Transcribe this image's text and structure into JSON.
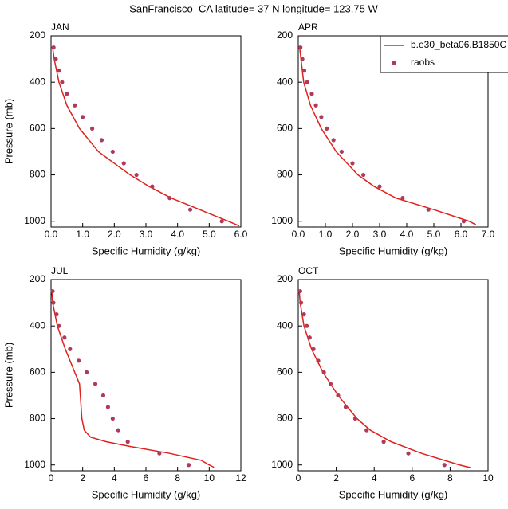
{
  "title": "SanFrancisco_CA  latitude= 37 N longitude= 123.75 W",
  "chart_data": [
    {
      "type": "line",
      "title": "JAN",
      "xlabel": "Specific Humidity (g/kg)",
      "ylabel": "Pressure (mb)",
      "xlim": [
        0,
        6
      ],
      "xticks": [
        {
          "value": 0,
          "label": "0.0"
        },
        {
          "value": 1,
          "label": "1.0"
        },
        {
          "value": 2,
          "label": "2.0"
        },
        {
          "value": 3,
          "label": "3.0"
        },
        {
          "value": 4,
          "label": "4.0"
        },
        {
          "value": 5,
          "label": "5.0"
        },
        {
          "value": 6,
          "label": "6.0"
        }
      ],
      "ylim": [
        1025,
        200
      ],
      "yticks": [
        200,
        400,
        600,
        800,
        1000
      ],
      "series": [
        {
          "style": "line",
          "color": "#e0201b",
          "x": [
            0.05,
            0.1,
            0.25,
            0.5,
            0.9,
            1.5,
            2.5,
            3.1,
            3.8,
            4.7,
            5.6,
            5.95
          ],
          "y": [
            250,
            300,
            400,
            500,
            600,
            700,
            800,
            850,
            900,
            950,
            1000,
            1020
          ]
        },
        {
          "style": "markers",
          "color": "#b03a5a",
          "x": [
            0.08,
            0.15,
            0.25,
            0.35,
            0.5,
            0.75,
            1.0,
            1.3,
            1.6,
            1.95,
            2.3,
            2.7,
            3.2,
            3.75,
            4.4,
            5.4
          ],
          "y": [
            250,
            300,
            350,
            400,
            450,
            500,
            550,
            600,
            650,
            700,
            750,
            800,
            850,
            900,
            950,
            1000
          ]
        }
      ]
    },
    {
      "type": "line",
      "title": "APR",
      "xlabel": "Specific Humidity (g/kg)",
      "xlim": [
        0,
        7
      ],
      "xticks": [
        {
          "value": 0,
          "label": "0.0"
        },
        {
          "value": 1,
          "label": "1.0"
        },
        {
          "value": 2,
          "label": "2.0"
        },
        {
          "value": 3,
          "label": "3.0"
        },
        {
          "value": 4,
          "label": "4.0"
        },
        {
          "value": 5,
          "label": "5.0"
        },
        {
          "value": 6,
          "label": "6.0"
        },
        {
          "value": 7,
          "label": "7.0"
        }
      ],
      "ylim": [
        1025,
        200
      ],
      "yticks": [
        200,
        400,
        600,
        800,
        1000
      ],
      "legend": "upper right",
      "series": [
        {
          "name": "b.e30_beta06.B1850C",
          "style": "line",
          "color": "#e0201b",
          "x": [
            0.05,
            0.1,
            0.2,
            0.45,
            0.85,
            1.4,
            2.2,
            2.8,
            3.6,
            5.0,
            6.3,
            6.55
          ],
          "y": [
            250,
            300,
            400,
            500,
            600,
            700,
            800,
            850,
            900,
            950,
            1000,
            1015
          ]
        },
        {
          "name": "raobs",
          "style": "markers",
          "color": "#b03a5a",
          "x": [
            0.08,
            0.15,
            0.22,
            0.33,
            0.5,
            0.65,
            0.85,
            1.05,
            1.3,
            1.6,
            2.0,
            2.4,
            3.0,
            3.85,
            4.8,
            6.1
          ],
          "y": [
            250,
            300,
            350,
            400,
            450,
            500,
            550,
            600,
            650,
            700,
            750,
            800,
            850,
            900,
            950,
            1000
          ]
        }
      ]
    },
    {
      "type": "line",
      "title": "JUL",
      "xlabel": "Specific Humidity (g/kg)",
      "ylabel": "Pressure (mb)",
      "xlim": [
        0,
        12
      ],
      "xticks": [
        0,
        2,
        4,
        6,
        8,
        10,
        12
      ],
      "ylim": [
        1025,
        200
      ],
      "yticks": [
        200,
        400,
        600,
        800,
        1000
      ],
      "series": [
        {
          "style": "line",
          "color": "#e0201b",
          "x": [
            0.05,
            0.1,
            0.4,
            0.9,
            1.5,
            1.8,
            1.85,
            1.95,
            2.1,
            2.5,
            3.5,
            5.0,
            7.5,
            9.5,
            10.0,
            10.3
          ],
          "y": [
            250,
            300,
            400,
            500,
            600,
            650,
            700,
            800,
            850,
            880,
            900,
            920,
            950,
            980,
            1000,
            1010
          ]
        },
        {
          "style": "markers",
          "color": "#b03a5a",
          "x": [
            0.1,
            0.15,
            0.35,
            0.5,
            0.85,
            1.2,
            1.75,
            2.25,
            2.8,
            3.3,
            3.6,
            3.9,
            4.25,
            4.85,
            6.85,
            8.7
          ],
          "y": [
            250,
            300,
            350,
            400,
            450,
            500,
            550,
            600,
            650,
            700,
            750,
            800,
            850,
            900,
            950,
            1000
          ]
        }
      ]
    },
    {
      "type": "line",
      "title": "OCT",
      "xlabel": "Specific Humidity (g/kg)",
      "xlim": [
        0,
        10
      ],
      "xticks": [
        0,
        2,
        4,
        6,
        8,
        10
      ],
      "ylim": [
        1025,
        200
      ],
      "yticks": [
        200,
        400,
        600,
        800,
        1000
      ],
      "series": [
        {
          "style": "line",
          "color": "#e0201b",
          "x": [
            0.05,
            0.1,
            0.3,
            0.7,
            1.3,
            2.1,
            3.1,
            3.8,
            4.9,
            6.5,
            8.5,
            9.1
          ],
          "y": [
            250,
            300,
            400,
            500,
            600,
            700,
            800,
            850,
            900,
            950,
            1000,
            1012
          ]
        },
        {
          "style": "markers",
          "color": "#b03a5a",
          "x": [
            0.1,
            0.15,
            0.3,
            0.45,
            0.6,
            0.8,
            1.05,
            1.35,
            1.7,
            2.1,
            2.5,
            3.0,
            3.6,
            4.5,
            5.8,
            7.7
          ],
          "y": [
            250,
            300,
            350,
            400,
            450,
            500,
            550,
            600,
            650,
            700,
            750,
            800,
            850,
            900,
            950,
            1000
          ]
        }
      ]
    }
  ]
}
